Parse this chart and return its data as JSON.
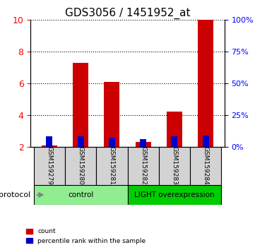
{
  "title": "GDS3056 / 1451952_at",
  "samples": [
    "GSM159279",
    "GSM159280",
    "GSM159281",
    "GSM159282",
    "GSM159283",
    "GSM159284"
  ],
  "count_values": [
    2.1,
    7.3,
    6.1,
    2.3,
    4.2,
    10.0
  ],
  "percentile_values": [
    0.08,
    0.08,
    0.07,
    0.06,
    0.08,
    0.09
  ],
  "ymin": 2,
  "ymax": 10,
  "y_ticks_left": [
    2,
    4,
    6,
    8,
    10
  ],
  "y_ticks_right": [
    0,
    25,
    50,
    75,
    100
  ],
  "groups": [
    {
      "label": "control",
      "start": 0,
      "end": 3,
      "color": "#90ee90"
    },
    {
      "label": "LIGHT overexpression",
      "start": 3,
      "end": 6,
      "color": "#00cc00"
    }
  ],
  "bar_color_red": "#cc0000",
  "bar_color_blue": "#0000cc",
  "bar_width": 0.5,
  "protocol_label": "protocol",
  "legend_items": [
    {
      "color": "#cc0000",
      "label": "count"
    },
    {
      "color": "#0000cc",
      "label": "percentile rank within the sample"
    }
  ],
  "bg_color_plot": "#ffffff",
  "bg_color_xtick": "#d3d3d3",
  "grid_color": "#000000",
  "title_fontsize": 11
}
